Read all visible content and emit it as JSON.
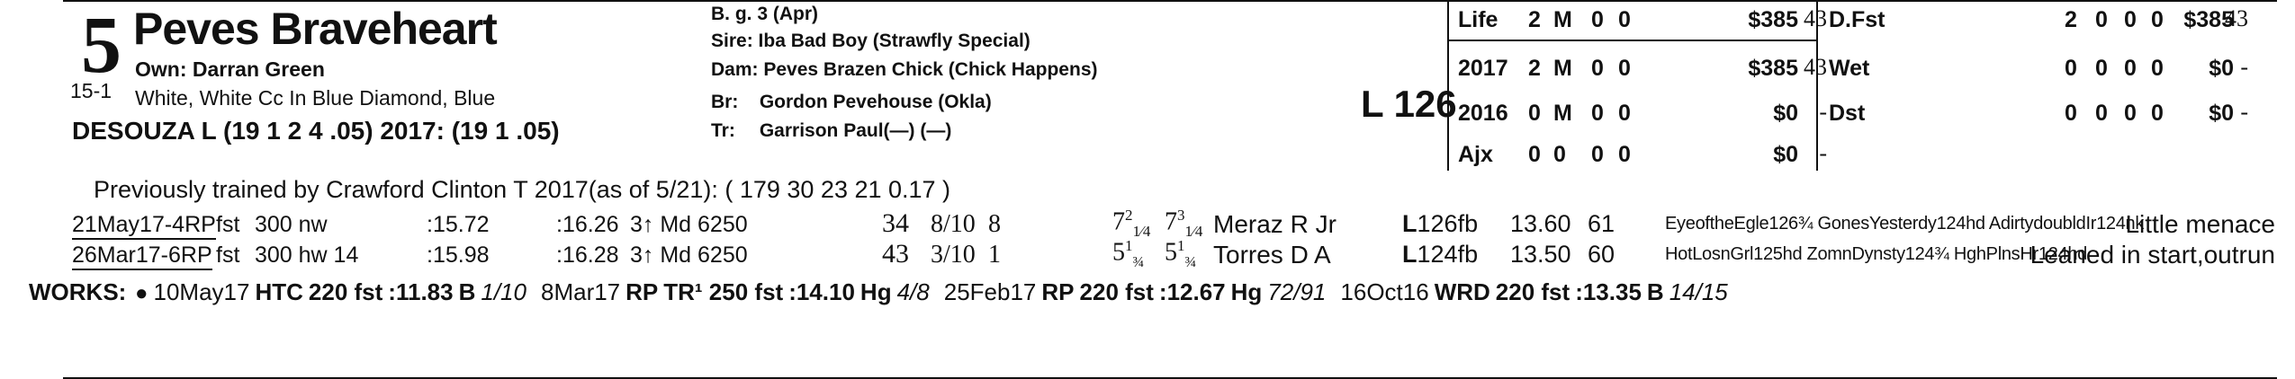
{
  "horse": {
    "number": "5",
    "odds": "15-1",
    "name": "Peves Braveheart",
    "owner": "Own: Darran Green",
    "silks": "White, White Cc In Blue Diamond, Blue",
    "jockey": "DESOUZA L (19 1 2 4 .05) 2017: (19 1 .05)"
  },
  "breeding": {
    "sex_age": "B. g. 3 (Apr)",
    "sire_label": "Sire:",
    "sire": "Iba Bad Boy (Strawfly Special)",
    "dam_label": "Dam:",
    "dam": "Peves Brazen Chick (Chick Happens)",
    "breeder_label": "Br:",
    "breeder": "Gordon Pevehouse (Okla)",
    "trainer_label": "Tr:",
    "trainer": "Garrison Paul(—) (—)"
  },
  "weight": "L 126",
  "stats_left": [
    {
      "label": "Life",
      "starts": "2",
      "w": "M",
      "p": "0",
      "s": "0",
      "earn": "$385",
      "fig": "43"
    },
    {
      "label": "2017",
      "starts": "2",
      "w": "M",
      "p": "0",
      "s": "0",
      "earn": "$385",
      "fig": "43"
    },
    {
      "label": "2016",
      "starts": "0",
      "w": "M",
      "p": "0",
      "s": "0",
      "earn": "$0",
      "fig": "-"
    },
    {
      "label": "Ajx",
      "starts": "0",
      "w": "0",
      "p": "0",
      "s": "0",
      "earn": "$0",
      "fig": "-"
    }
  ],
  "stats_right": [
    {
      "label": "D.Fst",
      "starts": "2",
      "w": "0",
      "p": "0",
      "s": "0",
      "earn": "$385",
      "fig": "43"
    },
    {
      "label": "Wet",
      "starts": "0",
      "w": "0",
      "p": "0",
      "s": "0",
      "earn": "$0",
      "fig": "-"
    },
    {
      "label": "Dst",
      "starts": "0",
      "w": "0",
      "p": "0",
      "s": "0",
      "earn": "$0",
      "fig": "-"
    }
  ],
  "prev_trainer": "Previously trained by Crawford Clinton T 2017(as of 5/21): ( 179 30 23 21 0.17 )",
  "races": [
    {
      "date": "21May17-4RP",
      "track": "fst",
      "dist": "300 nw",
      "frac1": ":15.72",
      "frac2": ":16.26",
      "cls": "3↑ Md 6250",
      "speed": "34",
      "pp": "8/10",
      "start": "8",
      "str": "7",
      "str_n": "2",
      "str_f": "1⁄4",
      "fin": "7",
      "fin_n": "3",
      "fin_f": "1⁄4",
      "jockey": "Meraz R Jr",
      "wt_l": "L",
      "wt": "126",
      "med": "fb",
      "odds": "13.60",
      "fig": "61",
      "comp": "EyeoftheEgle126¾ GonesYesterdy124hd AdirtydoubldIr124nk",
      "comment": "Little menace"
    },
    {
      "date": "26Mar17-6RP",
      "track": "fst",
      "dist": "300 hw 14",
      "frac1": ":15.98",
      "frac2": ":16.28",
      "cls": "3↑ Md 6250",
      "speed": "43",
      "pp": "3/10",
      "start": "1",
      "str": "5",
      "str_n": "1",
      "str_f": "¾",
      "fin": "5",
      "fin_n": "1",
      "fin_f": "¾",
      "jockey": "Torres D A",
      "wt_l": "L",
      "wt": "124",
      "med": "fb",
      "odds": "13.50",
      "fig": "60",
      "comp": "HotLosnGrl125hd ZomnDynsty124¾ HghPlnsHr124hd",
      "comment": "Leaned in start,outrun"
    }
  ],
  "works_label": "WORKS:",
  "works": [
    {
      "bullet": "●",
      "date": "10May17",
      "track": "HTC",
      "dist": "220 fst",
      "time": ":11.83",
      "grade": "B",
      "rank": "1/10"
    },
    {
      "bullet": "",
      "date": "8Mar17",
      "track": "RP",
      "dist": "TR¹ 250 fst",
      "time": ":14.10",
      "grade": "Hg",
      "rank": "4/8"
    },
    {
      "bullet": "",
      "date": "25Feb17",
      "track": "RP",
      "dist": "220 fst",
      "time": ":12.67",
      "grade": "Hg",
      "rank": "72/91"
    },
    {
      "bullet": "",
      "date": "16Oct16",
      "track": "WRD",
      "dist": "220 fst",
      "time": ":13.35",
      "grade": "B",
      "rank": "14/15"
    }
  ]
}
